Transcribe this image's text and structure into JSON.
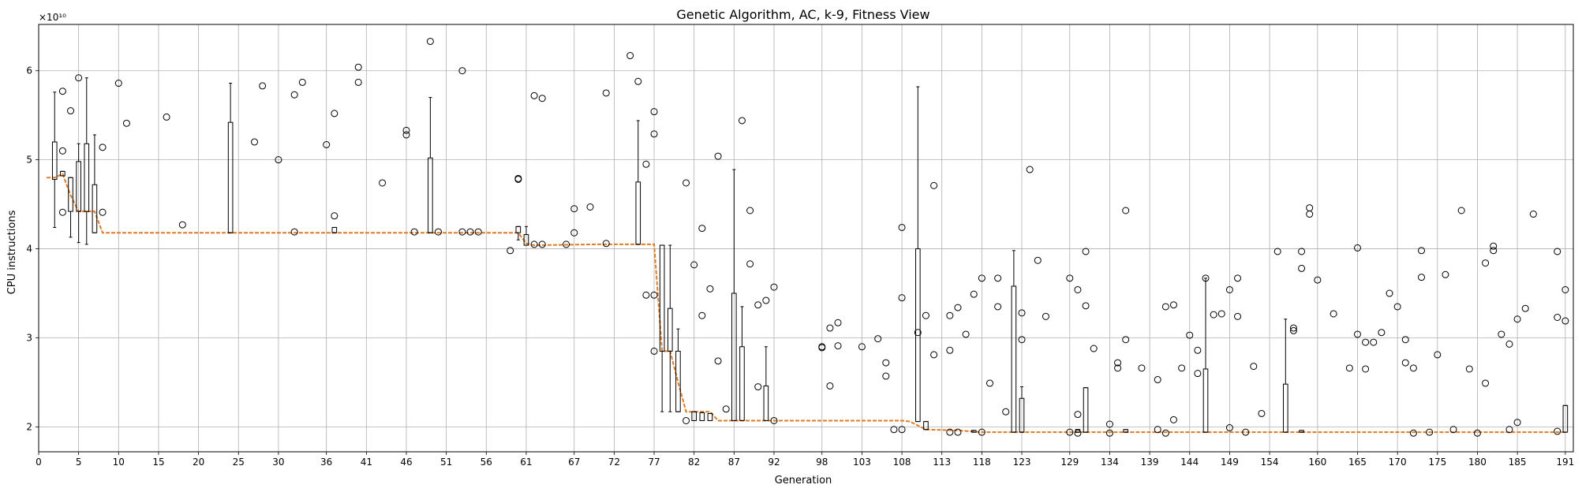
{
  "chart_data": {
    "type": "boxplot",
    "title": "Genetic Algorithm, AC, k-9, Fitness View",
    "xlabel": "Generation",
    "ylabel": "CPU instructions",
    "y_scale_label": "×10¹⁰",
    "y_multiplier": 10000000000.0,
    "xlim": [
      0,
      192
    ],
    "ylim": [
      1.72,
      6.52
    ],
    "x_ticks": [
      0,
      5,
      10,
      15,
      20,
      25,
      30,
      36,
      41,
      46,
      51,
      56,
      61,
      67,
      72,
      77,
      82,
      87,
      92,
      98,
      103,
      108,
      113,
      118,
      123,
      129,
      134,
      139,
      144,
      149,
      154,
      160,
      165,
      170,
      175,
      180,
      185,
      191
    ],
    "y_ticks": [
      2,
      3,
      4,
      5,
      6
    ],
    "grid": true,
    "median_series": [
      [
        1,
        4.8
      ],
      [
        2,
        4.8
      ],
      [
        3,
        4.84
      ],
      [
        4,
        4.6
      ],
      [
        5,
        4.42
      ],
      [
        6,
        4.42
      ],
      [
        7,
        4.42
      ],
      [
        8,
        4.18
      ],
      [
        30,
        4.18
      ],
      [
        50,
        4.18
      ],
      [
        60,
        4.18
      ],
      [
        61,
        4.06
      ],
      [
        62,
        4.04
      ],
      [
        70,
        4.05
      ],
      [
        77,
        4.05
      ],
      [
        78,
        2.85
      ],
      [
        79,
        2.85
      ],
      [
        80,
        2.5
      ],
      [
        81,
        2.17
      ],
      [
        84,
        2.17
      ],
      [
        85,
        2.07
      ],
      [
        100,
        2.07
      ],
      [
        108,
        2.07
      ],
      [
        109,
        2.06
      ],
      [
        111,
        1.97
      ],
      [
        115,
        1.96
      ],
      [
        118,
        1.94
      ],
      [
        160,
        1.94
      ],
      [
        191,
        1.94
      ]
    ],
    "boxes": [
      {
        "x": 2,
        "q1": 4.78,
        "q3": 5.2,
        "wlo": 4.24,
        "whi": 5.76
      },
      {
        "x": 3,
        "q1": 4.82,
        "q3": 4.87,
        "wlo": 4.82,
        "whi": 4.87
      },
      {
        "x": 4,
        "q1": 4.42,
        "q3": 4.8,
        "wlo": 4.13,
        "whi": 4.8
      },
      {
        "x": 5,
        "q1": 4.42,
        "q3": 4.98,
        "wlo": 4.07,
        "whi": 5.18
      },
      {
        "x": 6,
        "q1": 4.42,
        "q3": 5.18,
        "wlo": 4.05,
        "whi": 5.92
      },
      {
        "x": 7,
        "q1": 4.18,
        "q3": 4.72,
        "wlo": 4.18,
        "whi": 5.28
      },
      {
        "x": 24,
        "q1": 4.18,
        "q3": 5.42,
        "wlo": 4.18,
        "whi": 5.86
      },
      {
        "x": 37,
        "q1": 4.18,
        "q3": 4.24,
        "wlo": 4.18,
        "whi": 4.24
      },
      {
        "x": 49,
        "q1": 4.18,
        "q3": 5.02,
        "wlo": 4.18,
        "whi": 5.7
      },
      {
        "x": 60,
        "q1": 4.18,
        "q3": 4.25,
        "wlo": 4.1,
        "whi": 4.25
      },
      {
        "x": 61,
        "q1": 4.04,
        "q3": 4.16,
        "wlo": 4.04,
        "whi": 4.25
      },
      {
        "x": 75,
        "q1": 4.05,
        "q3": 4.75,
        "wlo": 4.05,
        "whi": 5.44
      },
      {
        "x": 78,
        "q1": 2.85,
        "q3": 4.04,
        "wlo": 2.17,
        "whi": 4.04
      },
      {
        "x": 79,
        "q1": 2.85,
        "q3": 3.33,
        "wlo": 2.17,
        "whi": 4.04
      },
      {
        "x": 80,
        "q1": 2.17,
        "q3": 2.85,
        "wlo": 2.17,
        "whi": 3.1
      },
      {
        "x": 82,
        "q1": 2.07,
        "q3": 2.17,
        "wlo": 2.07,
        "whi": 2.17
      },
      {
        "x": 83,
        "q1": 2.07,
        "q3": 2.16,
        "wlo": 2.07,
        "whi": 2.16
      },
      {
        "x": 84,
        "q1": 2.07,
        "q3": 2.15,
        "wlo": 2.07,
        "whi": 2.15
      },
      {
        "x": 87,
        "q1": 2.07,
        "q3": 3.5,
        "wlo": 2.07,
        "whi": 4.89
      },
      {
        "x": 88,
        "q1": 2.07,
        "q3": 2.9,
        "wlo": 2.07,
        "whi": 3.35
      },
      {
        "x": 91,
        "q1": 2.07,
        "q3": 2.46,
        "wlo": 2.07,
        "whi": 2.9
      },
      {
        "x": 110,
        "q1": 2.06,
        "q3": 4.0,
        "wlo": 2.06,
        "whi": 5.82
      },
      {
        "x": 111,
        "q1": 1.97,
        "q3": 2.06,
        "wlo": 1.97,
        "whi": 2.06
      },
      {
        "x": 117,
        "q1": 1.94,
        "q3": 1.96,
        "wlo": 1.94,
        "whi": 1.96
      },
      {
        "x": 122,
        "q1": 1.94,
        "q3": 3.58,
        "wlo": 1.94,
        "whi": 3.98
      },
      {
        "x": 123,
        "q1": 1.94,
        "q3": 2.32,
        "wlo": 1.94,
        "whi": 2.45
      },
      {
        "x": 130,
        "q1": 1.94,
        "q3": 1.97,
        "wlo": 1.94,
        "whi": 1.97
      },
      {
        "x": 131,
        "q1": 1.94,
        "q3": 2.44,
        "wlo": 1.94,
        "whi": 2.44
      },
      {
        "x": 136,
        "q1": 1.94,
        "q3": 1.97,
        "wlo": 1.94,
        "whi": 1.97
      },
      {
        "x": 146,
        "q1": 1.94,
        "q3": 2.65,
        "wlo": 1.94,
        "whi": 3.67
      },
      {
        "x": 156,
        "q1": 1.94,
        "q3": 2.48,
        "wlo": 1.94,
        "whi": 3.21
      },
      {
        "x": 158,
        "q1": 1.94,
        "q3": 1.96,
        "wlo": 1.94,
        "whi": 1.96
      },
      {
        "x": 191,
        "q1": 1.94,
        "q3": 2.24,
        "wlo": 1.94,
        "whi": 2.24
      }
    ],
    "outliers": [
      [
        3,
        5.77
      ],
      [
        3,
        5.1
      ],
      [
        3,
        4.41
      ],
      [
        4,
        5.55
      ],
      [
        5,
        5.92
      ],
      [
        8,
        5.14
      ],
      [
        8,
        4.41
      ],
      [
        10,
        5.86
      ],
      [
        11,
        5.41
      ],
      [
        16,
        5.48
      ],
      [
        18,
        4.27
      ],
      [
        27,
        5.2
      ],
      [
        28,
        5.83
      ],
      [
        30,
        5.0
      ],
      [
        32,
        5.73
      ],
      [
        32,
        4.19
      ],
      [
        33,
        5.87
      ],
      [
        36,
        5.17
      ],
      [
        37,
        5.52
      ],
      [
        37,
        4.37
      ],
      [
        40,
        6.04
      ],
      [
        40,
        5.87
      ],
      [
        43,
        4.74
      ],
      [
        46,
        5.33
      ],
      [
        46,
        5.28
      ],
      [
        47,
        4.19
      ],
      [
        49,
        6.33
      ],
      [
        50,
        4.19
      ],
      [
        53,
        6.0
      ],
      [
        53,
        4.19
      ],
      [
        54,
        4.19
      ],
      [
        55,
        4.19
      ],
      [
        59,
        3.98
      ],
      [
        60,
        4.79
      ],
      [
        60,
        4.78
      ],
      [
        62,
        5.72
      ],
      [
        62,
        4.05
      ],
      [
        63,
        5.69
      ],
      [
        63,
        4.05
      ],
      [
        66,
        4.05
      ],
      [
        67,
        4.45
      ],
      [
        67,
        4.18
      ],
      [
        69,
        4.47
      ],
      [
        71,
        5.75
      ],
      [
        71,
        4.06
      ],
      [
        74,
        6.17
      ],
      [
        75,
        5.88
      ],
      [
        76,
        4.95
      ],
      [
        77,
        5.54
      ],
      [
        77,
        5.29
      ],
      [
        76,
        3.48
      ],
      [
        77,
        3.48
      ],
      [
        77,
        2.85
      ],
      [
        81,
        4.74
      ],
      [
        81,
        2.07
      ],
      [
        82,
        3.82
      ],
      [
        83,
        4.23
      ],
      [
        83,
        3.25
      ],
      [
        84,
        3.55
      ],
      [
        85,
        5.04
      ],
      [
        85,
        2.74
      ],
      [
        86,
        2.2
      ],
      [
        88,
        5.44
      ],
      [
        89,
        4.43
      ],
      [
        89,
        3.83
      ],
      [
        90,
        3.37
      ],
      [
        90,
        2.45
      ],
      [
        91,
        3.42
      ],
      [
        92,
        3.57
      ],
      [
        92,
        2.07
      ],
      [
        98,
        2.9
      ],
      [
        98,
        2.89
      ],
      [
        99,
        3.11
      ],
      [
        99,
        2.46
      ],
      [
        100,
        3.17
      ],
      [
        100,
        2.91
      ],
      [
        103,
        2.9
      ],
      [
        105,
        2.99
      ],
      [
        106,
        2.72
      ],
      [
        106,
        2.57
      ],
      [
        107,
        1.97
      ],
      [
        108,
        4.24
      ],
      [
        108,
        3.45
      ],
      [
        108,
        1.97
      ],
      [
        110,
        3.06
      ],
      [
        111,
        3.25
      ],
      [
        112,
        4.71
      ],
      [
        112,
        2.81
      ],
      [
        114,
        3.25
      ],
      [
        114,
        2.86
      ],
      [
        114,
        1.94
      ],
      [
        115,
        3.34
      ],
      [
        115,
        1.94
      ],
      [
        116,
        3.04
      ],
      [
        117,
        3.49
      ],
      [
        118,
        3.67
      ],
      [
        118,
        1.94
      ],
      [
        119,
        2.49
      ],
      [
        120,
        3.67
      ],
      [
        120,
        3.35
      ],
      [
        121,
        2.17
      ],
      [
        123,
        3.28
      ],
      [
        123,
        2.98
      ],
      [
        124,
        4.89
      ],
      [
        125,
        3.87
      ],
      [
        126,
        3.24
      ],
      [
        129,
        3.67
      ],
      [
        129,
        1.94
      ],
      [
        130,
        3.54
      ],
      [
        130,
        2.14
      ],
      [
        130,
        1.93
      ],
      [
        131,
        3.97
      ],
      [
        131,
        3.36
      ],
      [
        132,
        2.88
      ],
      [
        134,
        1.93
      ],
      [
        134,
        2.03
      ],
      [
        135,
        2.72
      ],
      [
        135,
        2.66
      ],
      [
        136,
        4.43
      ],
      [
        136,
        2.98
      ],
      [
        138,
        2.66
      ],
      [
        140,
        2.53
      ],
      [
        140,
        1.97
      ],
      [
        141,
        3.35
      ],
      [
        141,
        1.93
      ],
      [
        142,
        3.37
      ],
      [
        142,
        2.08
      ],
      [
        143,
        2.66
      ],
      [
        144,
        3.03
      ],
      [
        145,
        2.86
      ],
      [
        145,
        2.6
      ],
      [
        146,
        3.67
      ],
      [
        147,
        3.26
      ],
      [
        148,
        3.27
      ],
      [
        149,
        3.54
      ],
      [
        149,
        1.99
      ],
      [
        150,
        3.24
      ],
      [
        150,
        3.67
      ],
      [
        151,
        1.94
      ],
      [
        152,
        2.68
      ],
      [
        153,
        2.15
      ],
      [
        155,
        3.97
      ],
      [
        157,
        3.11
      ],
      [
        157,
        3.08
      ],
      [
        158,
        3.97
      ],
      [
        158,
        3.78
      ],
      [
        159,
        4.46
      ],
      [
        159,
        4.39
      ],
      [
        160,
        3.65
      ],
      [
        162,
        3.27
      ],
      [
        164,
        2.66
      ],
      [
        165,
        4.01
      ],
      [
        165,
        3.04
      ],
      [
        166,
        2.95
      ],
      [
        166,
        2.65
      ],
      [
        167,
        2.95
      ],
      [
        168,
        3.06
      ],
      [
        169,
        3.5
      ],
      [
        170,
        3.35
      ],
      [
        171,
        2.98
      ],
      [
        171,
        2.72
      ],
      [
        172,
        2.66
      ],
      [
        172,
        1.93
      ],
      [
        173,
        3.98
      ],
      [
        173,
        3.68
      ],
      [
        174,
        1.94
      ],
      [
        175,
        2.81
      ],
      [
        176,
        3.71
      ],
      [
        177,
        1.97
      ],
      [
        178,
        4.43
      ],
      [
        179,
        2.65
      ],
      [
        180,
        1.93
      ],
      [
        181,
        3.84
      ],
      [
        181,
        2.49
      ],
      [
        182,
        4.03
      ],
      [
        182,
        3.98
      ],
      [
        183,
        3.04
      ],
      [
        184,
        2.93
      ],
      [
        184,
        1.97
      ],
      [
        185,
        3.21
      ],
      [
        185,
        2.05
      ],
      [
        186,
        3.33
      ],
      [
        187,
        4.39
      ],
      [
        190,
        3.97
      ],
      [
        190,
        3.23
      ],
      [
        190,
        1.95
      ],
      [
        191,
        3.54
      ],
      [
        191,
        3.19
      ]
    ]
  }
}
